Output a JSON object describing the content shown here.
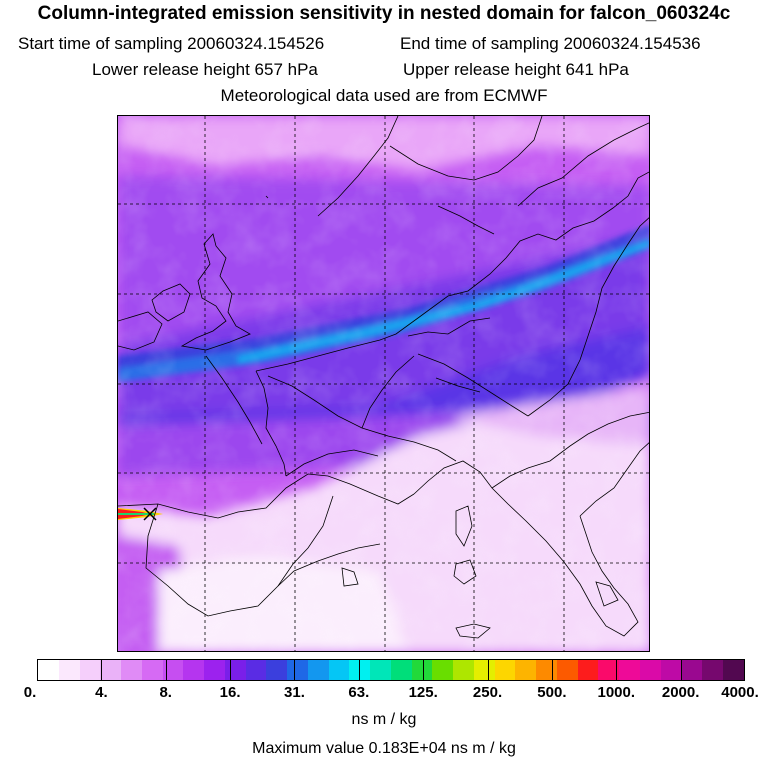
{
  "header": {
    "title": "Column-integrated emission sensitivity in nested domain for falcon_060324c",
    "start_label": "Start time of sampling 20060324.154526",
    "end_label": "End time of sampling 20060324.154536",
    "lower_label": "Lower release height  657 hPa",
    "upper_label": "Upper release height  641 hPa",
    "met_label": "Meteorological data used are from ECMWF"
  },
  "colorbar": {
    "colors": [
      "#ffffff",
      "#fbe8fd",
      "#f5cffb",
      "#eab2f8",
      "#e08bf6",
      "#d66af4",
      "#c64ef1",
      "#b535ef",
      "#9c22ee",
      "#7a1fe9",
      "#5a2ce4",
      "#3b3fdd",
      "#1f68e6",
      "#1397ef",
      "#05c6f5",
      "#00f0f0",
      "#00e6b8",
      "#00de7a",
      "#22d93a",
      "#69de00",
      "#aee600",
      "#e4ee00",
      "#fdd600",
      "#fdb400",
      "#fd8a00",
      "#fc5a00",
      "#fd1c1c",
      "#fa0a6a",
      "#ee0a98",
      "#da0aa8",
      "#be0aa6",
      "#9a0890",
      "#76086e",
      "#520850"
    ],
    "tick_labels": [
      "0.",
      "4.",
      "8.",
      "16.",
      "31.",
      "63.",
      "125.",
      "250.",
      "500.",
      "1000.",
      "2000.",
      "4000."
    ],
    "units": "ns m / kg"
  },
  "footer": {
    "max_value": "Maximum value  0.183E+04 ns m / kg"
  }
}
